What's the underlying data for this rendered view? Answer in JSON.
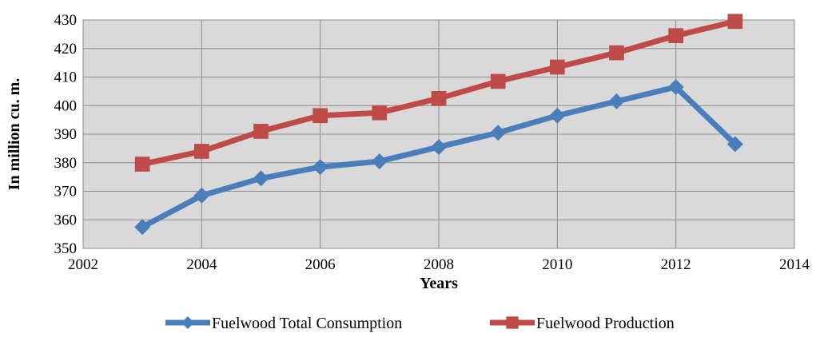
{
  "chart_data": {
    "type": "line",
    "xlabel": "Years",
    "ylabel": "In million cu. m.",
    "xlim": [
      2002,
      2014
    ],
    "ylim": [
      350,
      430
    ],
    "x_ticks": [
      2002,
      2004,
      2006,
      2008,
      2010,
      2012,
      2014
    ],
    "y_ticks": [
      350,
      360,
      370,
      380,
      390,
      400,
      410,
      420,
      430
    ],
    "grid": true,
    "legend_position": "bottom",
    "series": [
      {
        "name": "Fuelwood Total Consumption",
        "color": "#4a7ebb",
        "marker": "diamond",
        "x": [
          2003,
          2004,
          2005,
          2006,
          2007,
          2008,
          2009,
          2010,
          2011,
          2012,
          2013
        ],
        "y": [
          357.5,
          368.5,
          374.5,
          378.5,
          380.5,
          385.5,
          390.5,
          396.5,
          401.5,
          406.5,
          386.5
        ]
      },
      {
        "name": "Fuelwood Production",
        "color": "#be4b48",
        "marker": "square",
        "x": [
          2003,
          2004,
          2005,
          2006,
          2007,
          2008,
          2009,
          2010,
          2011,
          2012,
          2013
        ],
        "y": [
          379.5,
          384,
          391,
          396.5,
          397.5,
          402.5,
          408.5,
          413.5,
          418.5,
          424.5,
          429.5
        ]
      }
    ]
  }
}
